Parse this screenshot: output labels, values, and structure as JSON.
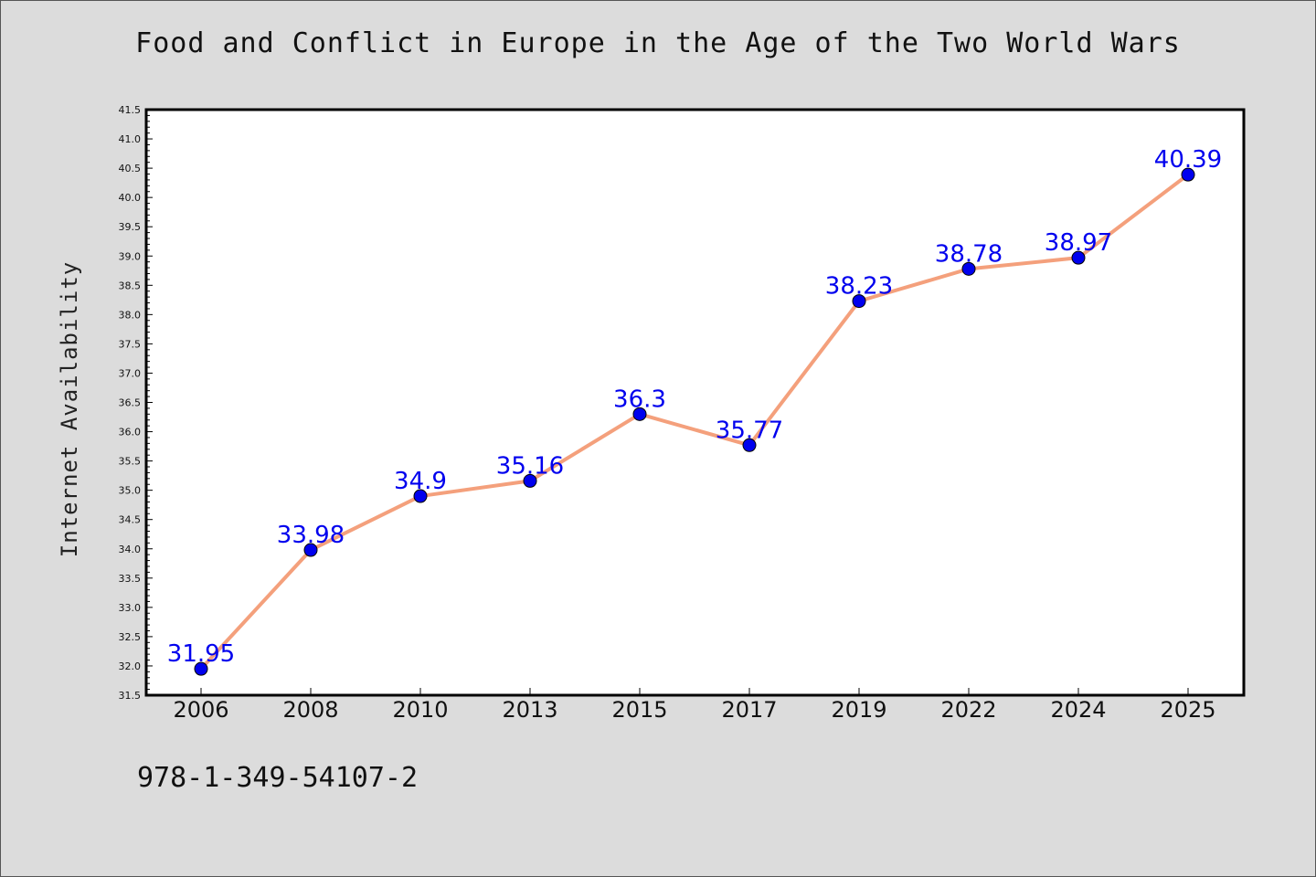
{
  "chart_data": {
    "type": "line",
    "title": "Food and Conflict in Europe in the Age of the Two World Wars",
    "xlabel": "",
    "ylabel": "Internet Availability",
    "categories": [
      "2006",
      "2008",
      "2010",
      "2013",
      "2015",
      "2017",
      "2019",
      "2022",
      "2024",
      "2025"
    ],
    "series": [
      {
        "values": [
          31.95,
          33.98,
          34.9,
          35.16,
          36.3,
          35.77,
          38.23,
          38.78,
          38.97,
          40.39
        ],
        "data_labels": [
          "31.95",
          "33.98",
          "34.9",
          "35.16",
          "36.3",
          "35.77",
          "38.23",
          "38.78",
          "38.97",
          "40.39"
        ],
        "line_color": "#f4a07c",
        "marker_color": "#0000ee"
      }
    ],
    "ylim": [
      31.5,
      41.5
    ],
    "yticks": [
      "31.5",
      "32.0",
      "32.5",
      "33.0",
      "33.5",
      "34.0",
      "34.5",
      "35.0",
      "35.5",
      "36.0",
      "36.5",
      "37.0",
      "37.5",
      "38.0",
      "38.5",
      "39.0",
      "39.5",
      "40.0",
      "40.5",
      "41.0",
      "41.5"
    ],
    "grid": false,
    "legend": "none"
  },
  "footer": {
    "isbn": "978-1-349-54107-2"
  },
  "colors": {
    "background": "#dcdcdc",
    "plot_background": "#ffffff",
    "line": "#f4a07c",
    "marker": "#0000ee",
    "data_label": "#0000ee"
  }
}
